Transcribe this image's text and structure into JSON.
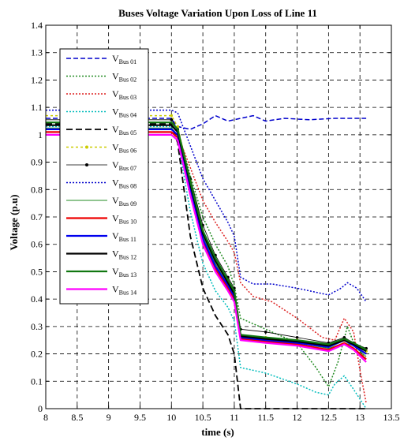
{
  "chart_data": {
    "type": "line",
    "title": "Buses Voltage Variation Upon Loss of Line 11",
    "xlabel": "time (s)",
    "ylabel": "Voltage (p.u)",
    "xlim": [
      8,
      13.5
    ],
    "ylim": [
      0,
      1.4
    ],
    "xticks": [
      "8",
      "8.5",
      "9",
      "9.5",
      "10",
      "10.5",
      "11",
      "11.5",
      "12",
      "12.5",
      "13",
      "13.5"
    ],
    "yticks": [
      "0",
      "0.1",
      "0.2",
      "0.3",
      "0.4",
      "0.5",
      "0.6",
      "0.7",
      "0.8",
      "0.9",
      "1",
      "1.1",
      "1.2",
      "1.3",
      "1.4"
    ],
    "grid": true,
    "legend_position": "top-left",
    "series": [
      {
        "name": "V",
        "sub": "Bus 01",
        "color": "#0000cc",
        "dash": "6,3",
        "width": 1.5,
        "marker": "",
        "points": [
          [
            8,
            1.06
          ],
          [
            9.99,
            1.06
          ],
          [
            10.1,
            1.03
          ],
          [
            10.3,
            1.02
          ],
          [
            10.5,
            1.04
          ],
          [
            10.7,
            1.07
          ],
          [
            10.9,
            1.05
          ],
          [
            11.1,
            1.06
          ],
          [
            11.3,
            1.07
          ],
          [
            11.5,
            1.05
          ],
          [
            11.8,
            1.06
          ],
          [
            12.2,
            1.055
          ],
          [
            12.6,
            1.06
          ],
          [
            13.1,
            1.06
          ]
        ]
      },
      {
        "name": "V",
        "sub": "Bus 02",
        "color": "#228b22",
        "dash": "2,2",
        "width": 1.5,
        "marker": "",
        "points": [
          [
            8,
            1.045
          ],
          [
            10.0,
            1.045
          ],
          [
            10.1,
            1.02
          ],
          [
            10.3,
            0.85
          ],
          [
            10.5,
            0.7
          ],
          [
            10.7,
            0.6
          ],
          [
            10.9,
            0.52
          ],
          [
            11.0,
            0.45
          ],
          [
            11.1,
            0.33
          ],
          [
            11.3,
            0.31
          ],
          [
            11.6,
            0.28
          ],
          [
            12.0,
            0.24
          ],
          [
            12.3,
            0.15
          ],
          [
            12.5,
            0.08
          ],
          [
            12.65,
            0.17
          ],
          [
            12.8,
            0.3
          ],
          [
            12.9,
            0.24
          ],
          [
            13.1,
            0.18
          ]
        ]
      },
      {
        "name": "V",
        "sub": "Bus 03",
        "color": "#dd2222",
        "dash": "2,2",
        "width": 1.5,
        "marker": "",
        "points": [
          [
            8,
            1.01
          ],
          [
            10.0,
            1.01
          ],
          [
            10.1,
            1.0
          ],
          [
            10.3,
            0.88
          ],
          [
            10.5,
            0.76
          ],
          [
            10.7,
            0.68
          ],
          [
            10.9,
            0.61
          ],
          [
            11.0,
            0.57
          ],
          [
            11.1,
            0.46
          ],
          [
            11.3,
            0.41
          ],
          [
            11.6,
            0.39
          ],
          [
            12.0,
            0.33
          ],
          [
            12.4,
            0.26
          ],
          [
            12.6,
            0.25
          ],
          [
            12.75,
            0.33
          ],
          [
            12.9,
            0.28
          ],
          [
            13.0,
            0.14
          ],
          [
            13.1,
            0.02
          ]
        ]
      },
      {
        "name": "V",
        "sub": "Bus 04",
        "color": "#00bcbc",
        "dash": "2,2",
        "width": 1.5,
        "marker": "",
        "points": [
          [
            8,
            1.03
          ],
          [
            10.0,
            1.03
          ],
          [
            10.1,
            0.98
          ],
          [
            10.3,
            0.72
          ],
          [
            10.5,
            0.53
          ],
          [
            10.7,
            0.43
          ],
          [
            10.9,
            0.37
          ],
          [
            11.0,
            0.32
          ],
          [
            11.1,
            0.15
          ],
          [
            11.5,
            0.13
          ],
          [
            12.0,
            0.09
          ],
          [
            12.3,
            0.06
          ],
          [
            12.5,
            0.05
          ],
          [
            12.6,
            0.09
          ],
          [
            12.75,
            0.12
          ],
          [
            12.9,
            0.07
          ],
          [
            13.1,
            0.0
          ]
        ]
      },
      {
        "name": "V",
        "sub": "Bus 05",
        "color": "#000000",
        "dash": "8,4",
        "width": 1.8,
        "marker": "",
        "points": [
          [
            8,
            1.04
          ],
          [
            10.0,
            1.04
          ],
          [
            10.1,
            0.97
          ],
          [
            10.3,
            0.63
          ],
          [
            10.5,
            0.44
          ],
          [
            10.7,
            0.34
          ],
          [
            10.9,
            0.27
          ],
          [
            11.0,
            0.2
          ],
          [
            11.1,
            0.0
          ],
          [
            13.1,
            0.0
          ]
        ]
      },
      {
        "name": "V",
        "sub": "Bus 06",
        "color": "#cccc00",
        "dash": "3,3",
        "width": 1.5,
        "marker": "dot",
        "points": [
          [
            8,
            1.07
          ],
          [
            10.0,
            1.07
          ],
          [
            10.1,
            1.03
          ],
          [
            10.3,
            0.83
          ],
          [
            10.5,
            0.65
          ],
          [
            10.7,
            0.54
          ],
          [
            10.9,
            0.47
          ],
          [
            11.0,
            0.42
          ],
          [
            11.1,
            0.27
          ],
          [
            11.5,
            0.26
          ],
          [
            12.0,
            0.25
          ],
          [
            12.5,
            0.23
          ],
          [
            12.75,
            0.25
          ],
          [
            12.9,
            0.24
          ],
          [
            13.1,
            0.21
          ]
        ]
      },
      {
        "name": "V",
        "sub": "Bus 07",
        "color": "#000000",
        "dash": "",
        "width": 0.8,
        "marker": "dot",
        "points": [
          [
            8,
            1.055
          ],
          [
            10.0,
            1.055
          ],
          [
            10.1,
            1.02
          ],
          [
            10.3,
            0.84
          ],
          [
            10.5,
            0.67
          ],
          [
            10.7,
            0.56
          ],
          [
            10.9,
            0.48
          ],
          [
            11.0,
            0.44
          ],
          [
            11.1,
            0.29
          ],
          [
            11.5,
            0.28
          ],
          [
            12.0,
            0.26
          ],
          [
            12.5,
            0.24
          ],
          [
            12.75,
            0.26
          ],
          [
            12.9,
            0.24
          ],
          [
            13.1,
            0.22
          ]
        ]
      },
      {
        "name": "V",
        "sub": "Bus 08",
        "color": "#0000cc",
        "dash": "2,2",
        "width": 1.5,
        "marker": "",
        "points": [
          [
            8,
            1.09
          ],
          [
            10.0,
            1.09
          ],
          [
            10.1,
            1.08
          ],
          [
            10.3,
            0.96
          ],
          [
            10.5,
            0.84
          ],
          [
            10.7,
            0.76
          ],
          [
            10.9,
            0.68
          ],
          [
            11.0,
            0.63
          ],
          [
            11.1,
            0.48
          ],
          [
            11.3,
            0.455
          ],
          [
            11.6,
            0.455
          ],
          [
            12.0,
            0.44
          ],
          [
            12.5,
            0.415
          ],
          [
            12.7,
            0.44
          ],
          [
            12.8,
            0.46
          ],
          [
            12.95,
            0.44
          ],
          [
            13.1,
            0.39
          ]
        ]
      },
      {
        "name": "V",
        "sub": "Bus 09",
        "color": "#228b22",
        "dash": "",
        "width": 1,
        "marker": "",
        "points": [
          [
            8,
            1.025
          ],
          [
            10.0,
            1.025
          ],
          [
            10.1,
            1.0
          ],
          [
            10.3,
            0.81
          ],
          [
            10.5,
            0.63
          ],
          [
            10.7,
            0.53
          ],
          [
            10.9,
            0.45
          ],
          [
            11.0,
            0.41
          ],
          [
            11.1,
            0.26
          ],
          [
            11.5,
            0.25
          ],
          [
            12.0,
            0.24
          ],
          [
            12.5,
            0.22
          ],
          [
            12.75,
            0.24
          ],
          [
            12.9,
            0.23
          ],
          [
            13.1,
            0.19
          ]
        ]
      },
      {
        "name": "V",
        "sub": "Bus 10",
        "color": "#ee0000",
        "dash": "",
        "width": 2.2,
        "marker": "",
        "points": [
          [
            8,
            1.01
          ],
          [
            10.0,
            1.01
          ],
          [
            10.1,
            0.99
          ],
          [
            10.3,
            0.79
          ],
          [
            10.5,
            0.61
          ],
          [
            10.7,
            0.51
          ],
          [
            10.9,
            0.44
          ],
          [
            11.0,
            0.4
          ],
          [
            11.1,
            0.255
          ],
          [
            11.5,
            0.245
          ],
          [
            12.0,
            0.235
          ],
          [
            12.5,
            0.215
          ],
          [
            12.75,
            0.24
          ],
          [
            12.9,
            0.22
          ],
          [
            13.1,
            0.18
          ]
        ]
      },
      {
        "name": "V",
        "sub": "Bus 11",
        "color": "#0000ee",
        "dash": "",
        "width": 2.2,
        "marker": "",
        "points": [
          [
            8,
            1.02
          ],
          [
            10.0,
            1.02
          ],
          [
            10.1,
            1.0
          ],
          [
            10.3,
            0.8
          ],
          [
            10.5,
            0.62
          ],
          [
            10.7,
            0.52
          ],
          [
            10.9,
            0.45
          ],
          [
            11.0,
            0.41
          ],
          [
            11.1,
            0.26
          ],
          [
            11.5,
            0.25
          ],
          [
            12.0,
            0.24
          ],
          [
            12.5,
            0.225
          ],
          [
            12.75,
            0.25
          ],
          [
            12.9,
            0.23
          ],
          [
            13.1,
            0.2
          ]
        ]
      },
      {
        "name": "V",
        "sub": "Bus 12",
        "color": "#000000",
        "dash": "",
        "width": 2.2,
        "marker": "",
        "points": [
          [
            8,
            1.035
          ],
          [
            10.0,
            1.035
          ],
          [
            10.1,
            1.01
          ],
          [
            10.3,
            0.82
          ],
          [
            10.5,
            0.64
          ],
          [
            10.7,
            0.54
          ],
          [
            10.9,
            0.46
          ],
          [
            11.0,
            0.42
          ],
          [
            11.1,
            0.265
          ],
          [
            11.5,
            0.255
          ],
          [
            12.0,
            0.245
          ],
          [
            12.5,
            0.23
          ],
          [
            12.75,
            0.25
          ],
          [
            12.9,
            0.235
          ],
          [
            13.1,
            0.21
          ]
        ]
      },
      {
        "name": "V",
        "sub": "Bus 13",
        "color": "#117711",
        "dash": "",
        "width": 2.2,
        "marker": "",
        "points": [
          [
            8,
            1.045
          ],
          [
            10.0,
            1.045
          ],
          [
            10.1,
            1.02
          ],
          [
            10.3,
            0.83
          ],
          [
            10.5,
            0.65
          ],
          [
            10.7,
            0.55
          ],
          [
            10.9,
            0.47
          ],
          [
            11.0,
            0.43
          ],
          [
            11.1,
            0.27
          ],
          [
            11.5,
            0.26
          ],
          [
            12.0,
            0.25
          ],
          [
            12.5,
            0.235
          ],
          [
            12.75,
            0.255
          ],
          [
            12.9,
            0.24
          ],
          [
            13.1,
            0.215
          ]
        ]
      },
      {
        "name": "V",
        "sub": "Bus 14",
        "color": "#ff00ff",
        "dash": "",
        "width": 2.2,
        "marker": "",
        "points": [
          [
            8,
            1.0
          ],
          [
            10.0,
            1.0
          ],
          [
            10.1,
            0.98
          ],
          [
            10.3,
            0.78
          ],
          [
            10.5,
            0.6
          ],
          [
            10.7,
            0.5
          ],
          [
            10.9,
            0.43
          ],
          [
            11.0,
            0.39
          ],
          [
            11.1,
            0.25
          ],
          [
            11.5,
            0.24
          ],
          [
            12.0,
            0.23
          ],
          [
            12.5,
            0.21
          ],
          [
            12.75,
            0.235
          ],
          [
            12.9,
            0.215
          ],
          [
            13.1,
            0.17
          ]
        ]
      }
    ]
  }
}
